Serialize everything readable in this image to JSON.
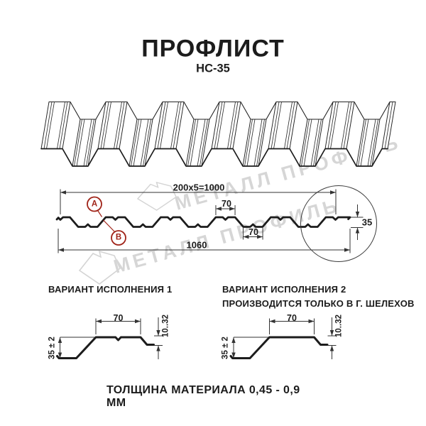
{
  "title": "ПРОФЛИСТ",
  "subtitle": "НС-35",
  "watermark": {
    "text": "МЕТАЛЛ ПРОФИЛЬ"
  },
  "cross_section": {
    "dim_coverage": "200x5=1000",
    "dim_top_flat": "70",
    "dim_bottom_flat": "70",
    "dim_overall": "1060",
    "dim_height": "35",
    "label_a": "А",
    "label_b": "В"
  },
  "variant1": {
    "heading": "ВАРИАНТ ИСПОЛНЕНИЯ 1",
    "dim_flat": "70",
    "dim_edge": "10..32",
    "dim_height": "35 ± 2"
  },
  "variant2": {
    "heading": "ВАРИАНТ ИСПОЛНЕНИЯ 2",
    "subheading": "ПРОИЗВОДИТСЯ ТОЛЬКО В Г. ШЕЛЕХОВ",
    "dim_flat": "70",
    "dim_edge": "10..32",
    "dim_height": "35 ± 2"
  },
  "footer": {
    "thickness": "ТОЛЩИНА МАТЕРИАЛА 0,45 - 0,9 ММ"
  },
  "colors": {
    "line": "#1c1c1c",
    "dim": "#333333",
    "accent_red": "#a02318",
    "watermark": "#d6d6d6"
  }
}
